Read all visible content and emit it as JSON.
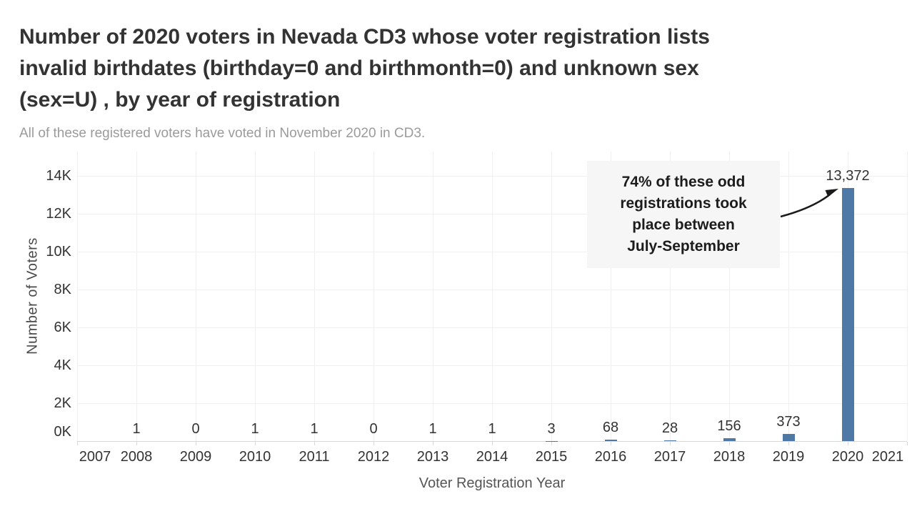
{
  "header": {
    "title_lines": [
      "Number of 2020 voters in Nevada CD3 whose voter registration lists",
      "invalid birthdates (birthday=0 and birthmonth=0) and unknown sex",
      "(sex=U) , by year of registration"
    ],
    "subtitle": "All of these registered voters have voted in November 2020 in CD3."
  },
  "chart_data": {
    "type": "bar",
    "title": "Number of 2020 voters in Nevada CD3 whose voter registration lists invalid birthdates (birthday=0 and birthmonth=0) and unknown sex (sex=U) , by year of registration",
    "subtitle": "All of these registered voters have voted in November 2020 in CD3.",
    "xlabel": "Voter Registration Year",
    "ylabel": "Number of Voters",
    "x_axis_years": [
      "2007",
      "2008",
      "2009",
      "2010",
      "2011",
      "2012",
      "2013",
      "2014",
      "2015",
      "2016",
      "2017",
      "2018",
      "2019",
      "2020",
      "2021"
    ],
    "y_tick_labels": [
      "0K",
      "2K",
      "4K",
      "6K",
      "8K",
      "10K",
      "12K",
      "14K"
    ],
    "ylim": [
      0,
      14000
    ],
    "grid": true,
    "bar_color": "#4e79a7",
    "label_color": "#333333",
    "categories": [
      "2008",
      "2009",
      "2010",
      "2011",
      "2012",
      "2013",
      "2014",
      "2015",
      "2016",
      "2017",
      "2018",
      "2019",
      "2020"
    ],
    "values": [
      1,
      0,
      1,
      1,
      0,
      1,
      1,
      3,
      68,
      28,
      156,
      373,
      13372
    ],
    "labels": [
      "1",
      "0",
      "1",
      "1",
      "0",
      "1",
      "1",
      "3",
      "68",
      "28",
      "156",
      "373",
      "13,372"
    ],
    "legend": "none",
    "annotation": {
      "lines": [
        "74% of these odd",
        "registrations took",
        "place between",
        "July-September"
      ],
      "bg": "#f6f6f6",
      "arrow_color": "#1a1a1a"
    }
  }
}
